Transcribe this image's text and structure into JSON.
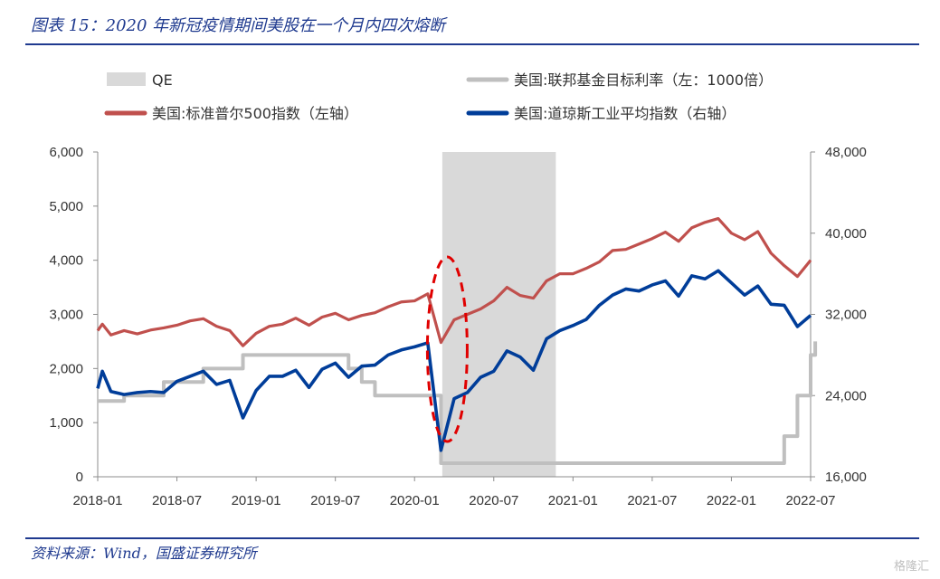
{
  "header": {
    "title": "图表 15：2020 年新冠疫情期间美股在一个月内四次熔断"
  },
  "footer": {
    "source": "资料来源：Wind，国盛证券研究所",
    "watermark": "格隆汇"
  },
  "colors": {
    "qe": "#d9d9d9",
    "fed_rate": "#bfbfbf",
    "sp500": "#c0504d",
    "dow": "#003d99",
    "highlight": "#e00000",
    "accent": "#1f3a8f"
  },
  "chart_data": {
    "type": "line",
    "x_ticks": [
      "2018-01",
      "2018-07",
      "2019-01",
      "2019-07",
      "2020-01",
      "2020-07",
      "2021-01",
      "2021-07",
      "2022-01",
      "2022-07"
    ],
    "left_axis": {
      "ticks": [
        "0",
        "1,000",
        "2,000",
        "3,000",
        "4,000",
        "5,000",
        "6,000"
      ],
      "range": [
        0,
        6000
      ]
    },
    "right_axis": {
      "ticks": [
        "16,000",
        "24,000",
        "32,000",
        "40,000",
        "48,000"
      ],
      "range": [
        16000,
        48000
      ]
    },
    "legend": [
      {
        "label": "QE",
        "kind": "area",
        "color": "#d9d9d9"
      },
      {
        "label": "美国:联邦基金目标利率（左：1000倍）",
        "kind": "line",
        "color": "#bfbfbf"
      },
      {
        "label": "美国:标准普尔500指数（左轴）",
        "kind": "line",
        "color": "#c0504d"
      },
      {
        "label": "美国:道琼斯工业平均指数（右轴）",
        "kind": "line",
        "color": "#003d99"
      }
    ],
    "qe_period": {
      "start": "2020-03",
      "end": "2020-12"
    },
    "highlight": {
      "center": "2020-03",
      "shape": "dashed-ellipse",
      "note": "circuit breakers"
    },
    "series": [
      {
        "name": "美国:联邦基金目标利率（左：1000倍）",
        "axis": "left",
        "step": true,
        "points": [
          [
            "2018-01",
            1400
          ],
          [
            "2018-03",
            1500
          ],
          [
            "2018-06",
            1750
          ],
          [
            "2018-09",
            2000
          ],
          [
            "2018-12",
            2250
          ],
          [
            "2019-08",
            2000
          ],
          [
            "2019-09",
            1750
          ],
          [
            "2019-10",
            1500
          ],
          [
            "2020-03",
            250
          ],
          [
            "2022-03",
            250
          ],
          [
            "2022-05",
            750
          ],
          [
            "2022-06",
            1500
          ],
          [
            "2022-07",
            2250
          ],
          [
            "2022-07",
            2500
          ]
        ]
      },
      {
        "name": "美国:标准普尔500指数（左轴）",
        "axis": "left",
        "points": [
          [
            "2018-01",
            2700
          ],
          [
            "2018-01",
            2820
          ],
          [
            "2018-02",
            2620
          ],
          [
            "2018-03",
            2700
          ],
          [
            "2018-04",
            2640
          ],
          [
            "2018-05",
            2710
          ],
          [
            "2018-06",
            2750
          ],
          [
            "2018-07",
            2800
          ],
          [
            "2018-08",
            2880
          ],
          [
            "2018-09",
            2920
          ],
          [
            "2018-10",
            2780
          ],
          [
            "2018-11",
            2700
          ],
          [
            "2018-12",
            2420
          ],
          [
            "2019-01",
            2650
          ],
          [
            "2019-02",
            2780
          ],
          [
            "2019-03",
            2820
          ],
          [
            "2019-04",
            2930
          ],
          [
            "2019-05",
            2800
          ],
          [
            "2019-06",
            2950
          ],
          [
            "2019-07",
            3020
          ],
          [
            "2019-08",
            2900
          ],
          [
            "2019-09",
            2980
          ],
          [
            "2019-10",
            3030
          ],
          [
            "2019-11",
            3140
          ],
          [
            "2019-12",
            3230
          ],
          [
            "2020-01",
            3250
          ],
          [
            "2020-02",
            3380
          ],
          [
            "2020-03",
            2480
          ],
          [
            "2020-04",
            2900
          ],
          [
            "2020-05",
            3000
          ],
          [
            "2020-06",
            3100
          ],
          [
            "2020-07",
            3250
          ],
          [
            "2020-08",
            3500
          ],
          [
            "2020-09",
            3350
          ],
          [
            "2020-10",
            3300
          ],
          [
            "2020-11",
            3620
          ],
          [
            "2020-12",
            3750
          ],
          [
            "2021-01",
            3750
          ],
          [
            "2021-02",
            3850
          ],
          [
            "2021-03",
            3970
          ],
          [
            "2021-04",
            4180
          ],
          [
            "2021-05",
            4200
          ],
          [
            "2021-06",
            4300
          ],
          [
            "2021-07",
            4400
          ],
          [
            "2021-08",
            4520
          ],
          [
            "2021-09",
            4350
          ],
          [
            "2021-10",
            4600
          ],
          [
            "2021-11",
            4700
          ],
          [
            "2021-12",
            4770
          ],
          [
            "2022-01",
            4500
          ],
          [
            "2022-02",
            4380
          ],
          [
            "2022-03",
            4530
          ],
          [
            "2022-04",
            4130
          ],
          [
            "2022-05",
            3900
          ],
          [
            "2022-06",
            3700
          ],
          [
            "2022-07",
            4000
          ]
        ]
      },
      {
        "name": "美国:道琼斯工业平均指数（右轴）",
        "axis": "right",
        "points": [
          [
            "2018-01",
            24700
          ],
          [
            "2018-01",
            26400
          ],
          [
            "2018-02",
            24400
          ],
          [
            "2018-03",
            24100
          ],
          [
            "2018-04",
            24300
          ],
          [
            "2018-05",
            24400
          ],
          [
            "2018-06",
            24300
          ],
          [
            "2018-07",
            25400
          ],
          [
            "2018-08",
            25900
          ],
          [
            "2018-09",
            26400
          ],
          [
            "2018-10",
            25100
          ],
          [
            "2018-11",
            25500
          ],
          [
            "2018-12",
            21800
          ],
          [
            "2019-01",
            24500
          ],
          [
            "2019-02",
            25900
          ],
          [
            "2019-03",
            25900
          ],
          [
            "2019-04",
            26500
          ],
          [
            "2019-05",
            24800
          ],
          [
            "2019-06",
            26600
          ],
          [
            "2019-07",
            27200
          ],
          [
            "2019-08",
            25800
          ],
          [
            "2019-09",
            26900
          ],
          [
            "2019-10",
            27000
          ],
          [
            "2019-11",
            28000
          ],
          [
            "2019-12",
            28500
          ],
          [
            "2020-01",
            28800
          ],
          [
            "2020-02",
            29200
          ],
          [
            "2020-03",
            18600
          ],
          [
            "2020-04",
            23700
          ],
          [
            "2020-05",
            24300
          ],
          [
            "2020-06",
            25800
          ],
          [
            "2020-07",
            26400
          ],
          [
            "2020-08",
            28400
          ],
          [
            "2020-09",
            27800
          ],
          [
            "2020-10",
            26500
          ],
          [
            "2020-11",
            29600
          ],
          [
            "2020-12",
            30400
          ],
          [
            "2021-01",
            30900
          ],
          [
            "2021-02",
            31500
          ],
          [
            "2021-03",
            32900
          ],
          [
            "2021-04",
            33900
          ],
          [
            "2021-05",
            34500
          ],
          [
            "2021-06",
            34300
          ],
          [
            "2021-07",
            34900
          ],
          [
            "2021-08",
            35300
          ],
          [
            "2021-09",
            33800
          ],
          [
            "2021-10",
            35800
          ],
          [
            "2021-11",
            35500
          ],
          [
            "2021-12",
            36300
          ],
          [
            "2022-01",
            35100
          ],
          [
            "2022-02",
            33900
          ],
          [
            "2022-03",
            34800
          ],
          [
            "2022-04",
            33000
          ],
          [
            "2022-05",
            32900
          ],
          [
            "2022-06",
            30800
          ],
          [
            "2022-07",
            31900
          ]
        ]
      }
    ]
  }
}
